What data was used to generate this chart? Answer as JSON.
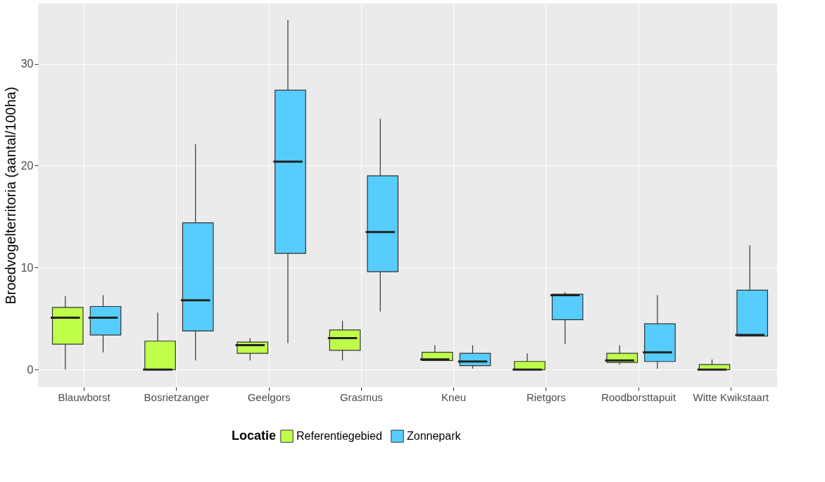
{
  "chart_data": {
    "type": "box",
    "ylabel": "Broedvogelterritoria (aantal/100ha)",
    "legend_title": "Locatie",
    "categories": [
      "Blauwborst",
      "Bosrietzanger",
      "Geelgors",
      "Grasmus",
      "Kneu",
      "Rietgors",
      "Roodborsttapuit",
      "Witte Kwikstaart"
    ],
    "series": [
      {
        "name": "Referentiegebied",
        "color": "#bfff4a",
        "boxes": [
          {
            "low": 0,
            "q1": 2.5,
            "median": 5.1,
            "q3": 6.1,
            "high": 7.2
          },
          {
            "low": 0,
            "q1": 0,
            "median": 0,
            "q3": 2.8,
            "high": 5.6
          },
          {
            "low": 0.9,
            "q1": 1.6,
            "median": 2.4,
            "q3": 2.7,
            "high": 3.1
          },
          {
            "low": 0.9,
            "q1": 1.9,
            "median": 3.1,
            "q3": 3.9,
            "high": 4.8
          },
          {
            "low": 0.9,
            "q1": 0.9,
            "median": 1.0,
            "q3": 1.7,
            "high": 2.4
          },
          {
            "low": 0,
            "q1": 0,
            "median": 0,
            "q3": 0.8,
            "high": 1.6
          },
          {
            "low": 0.5,
            "q1": 0.7,
            "median": 0.9,
            "q3": 1.6,
            "high": 2.4
          },
          {
            "low": 0,
            "q1": 0,
            "median": 0,
            "q3": 0.5,
            "high": 1.0
          }
        ]
      },
      {
        "name": "Zonnepark",
        "color": "#56cdfc",
        "boxes": [
          {
            "low": 1.7,
            "q1": 3.4,
            "median": 5.1,
            "q3": 6.2,
            "high": 7.3
          },
          {
            "low": 0.9,
            "q1": 3.8,
            "median": 6.8,
            "q3": 14.4,
            "high": 22.1
          },
          {
            "low": 2.6,
            "q1": 11.4,
            "median": 20.4,
            "q3": 27.4,
            "high": 34.3
          },
          {
            "low": 5.7,
            "q1": 9.6,
            "median": 13.5,
            "q3": 19.0,
            "high": 24.6
          },
          {
            "low": 0.1,
            "q1": 0.4,
            "median": 0.8,
            "q3": 1.6,
            "high": 2.4
          },
          {
            "low": 2.5,
            "q1": 4.9,
            "median": 7.3,
            "q3": 7.4,
            "high": 7.6
          },
          {
            "low": 0.1,
            "q1": 0.8,
            "median": 1.7,
            "q3": 4.5,
            "high": 7.3
          },
          {
            "low": 3.3,
            "q1": 3.3,
            "median": 3.4,
            "q3": 7.8,
            "high": 12.2
          }
        ]
      }
    ],
    "ylim": [
      -1.7,
      35.9
    ],
    "yticks": [
      0,
      10,
      20,
      30
    ],
    "grid": true,
    "legend": "bottom"
  }
}
